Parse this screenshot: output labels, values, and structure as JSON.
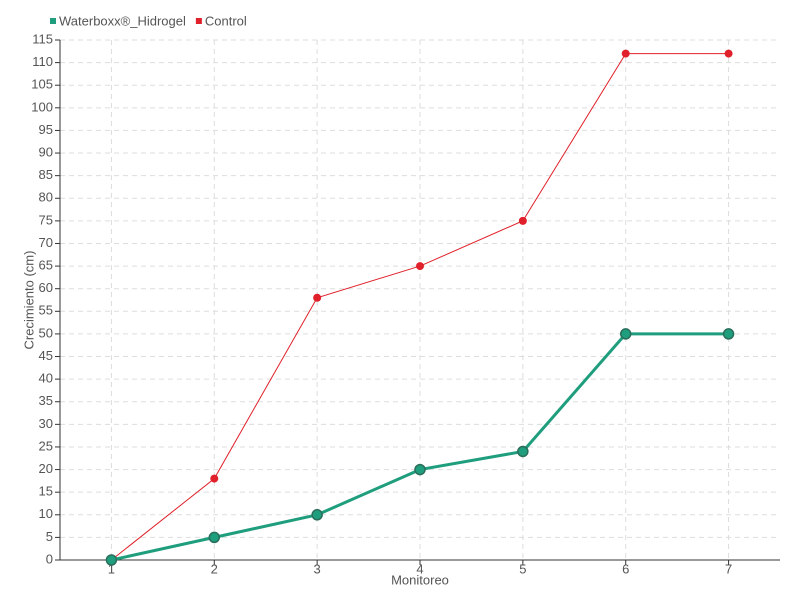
{
  "chart_data": {
    "type": "line",
    "x_label": "Monitoreo",
    "y_label": "Crecimiento (cm)",
    "categories": [
      "1",
      "2",
      "3",
      "4",
      "5",
      "6",
      "7"
    ],
    "series": [
      {
        "name": "Waterboxx®_Hidrogel",
        "color": "#1f9e7e",
        "values": [
          0,
          5,
          10,
          20,
          24,
          50,
          50
        ]
      },
      {
        "name": "Control",
        "color": "#e0202a",
        "values": [
          0,
          18,
          58,
          65,
          75,
          112,
          112
        ]
      }
    ],
    "ylim": [
      0,
      115
    ],
    "yticks": [
      0,
      5,
      10,
      15,
      20,
      25,
      30,
      35,
      40,
      45,
      50,
      55,
      60,
      65,
      70,
      75,
      80,
      85,
      90,
      95,
      100,
      105,
      110,
      115
    ],
    "grid": true,
    "legend": "top-left"
  }
}
